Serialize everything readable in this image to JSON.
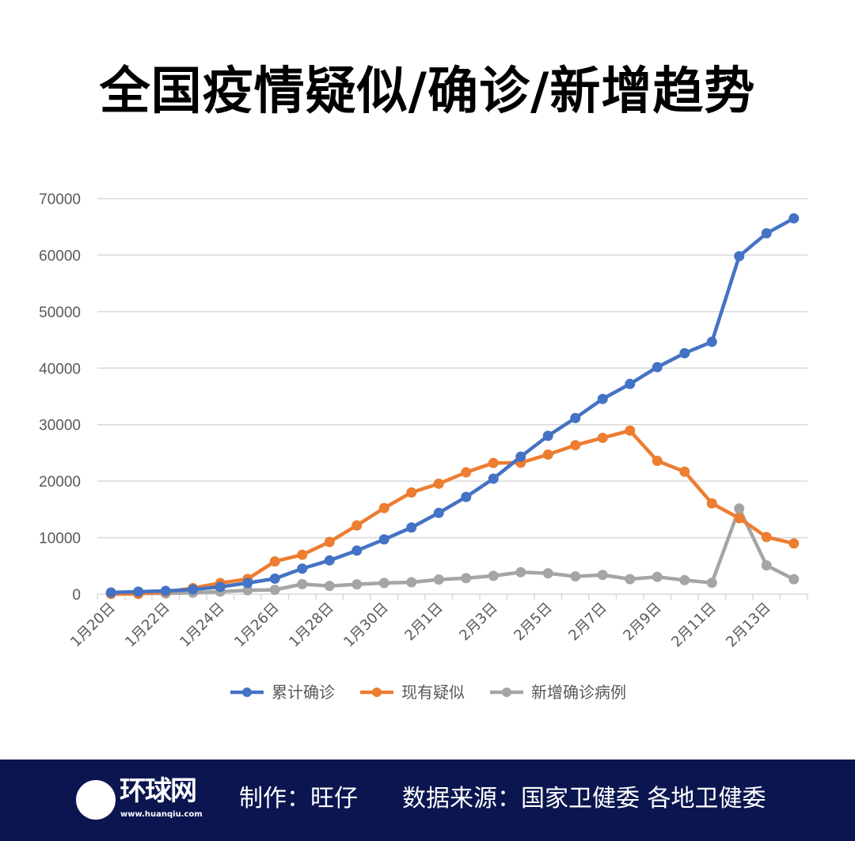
{
  "title": "全国疫情疑似/确诊/新增趋势",
  "chart_data": {
    "type": "line",
    "title": "",
    "xlabel": "",
    "ylabel": "",
    "ylim": [
      0,
      70000
    ],
    "yticks": [
      "0",
      "10000",
      "20000",
      "30000",
      "40000",
      "50000",
      "60000",
      "70000"
    ],
    "grid": true,
    "legend_position": "bottom",
    "x": [
      "1月20日",
      "1月21日",
      "1月22日",
      "1月23日",
      "1月24日",
      "1月25日",
      "1月26日",
      "1月27日",
      "1月28日",
      "1月29日",
      "1月30日",
      "1月31日",
      "2月1日",
      "2月2日",
      "2月3日",
      "2月4日",
      "2月5日",
      "2月6日",
      "2月7日",
      "2月8日",
      "2月9日",
      "2月10日",
      "2月11日",
      "2月12日",
      "2月13日",
      "2月14日"
    ],
    "xtick_labels": [
      "1月20日",
      "1月22日",
      "1月24日",
      "1月26日",
      "1月28日",
      "1月30日",
      "2月1日",
      "2月3日",
      "2月5日",
      "2月7日",
      "2月9日",
      "2月11日",
      "2月13日"
    ],
    "series": [
      {
        "name": "累计确诊",
        "color": "#4472c4",
        "values": [
          291,
          440,
          571,
          830,
          1287,
          1975,
          2744,
          4515,
          5974,
          7711,
          9692,
          11791,
          14380,
          17205,
          20438,
          24324,
          28018,
          31161,
          34546,
          37198,
          40171,
          42638,
          44653,
          59804,
          63851,
          66492
        ]
      },
      {
        "name": "现有疑似",
        "color": "#ed7d31",
        "values": [
          54,
          37,
          393,
          1072,
          1965,
          2684,
          5794,
          6973,
          9239,
          12167,
          15238,
          17988,
          19544,
          21558,
          23214,
          23260,
          24702,
          26359,
          27657,
          28942,
          23589,
          21675,
          16067,
          13435,
          10109,
          8969
        ]
      },
      {
        "name": "新增确诊病例",
        "color": "#a5a5a5",
        "values": [
          77,
          149,
          131,
          259,
          444,
          688,
          769,
          1771,
          1459,
          1737,
          1982,
          2102,
          2590,
          2829,
          3235,
          3887,
          3694,
          3143,
          3399,
          2656,
          3062,
          2478,
          2015,
          15152,
          5090,
          2641
        ]
      }
    ]
  },
  "footer": {
    "logo_text": "环球网",
    "logo_url": "www.huanqiu.com",
    "credit": "制作：旺仔",
    "source": "数据来源：国家卫健委 各地卫健委"
  }
}
